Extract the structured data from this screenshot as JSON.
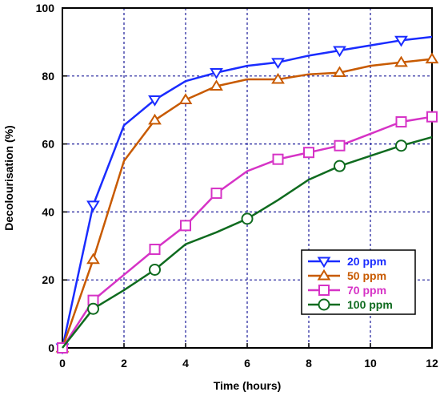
{
  "chart_data": {
    "type": "line",
    "title": "",
    "xlabel": "Time (hours)",
    "ylabel": "Decolourisation (%)",
    "xlim": [
      0,
      12
    ],
    "ylim": [
      0,
      100
    ],
    "xticks": [
      0,
      2,
      4,
      6,
      8,
      10,
      12
    ],
    "yticks": [
      0,
      20,
      40,
      60,
      80,
      100
    ],
    "grid": true,
    "legend_position": "bottom-right",
    "series": [
      {
        "name": "20 ppm",
        "color": "#1a2cff",
        "marker": "triangle-down",
        "x": [
          0,
          1,
          2,
          3,
          4,
          5,
          6,
          7,
          8,
          9,
          10,
          11,
          12
        ],
        "y": [
          0,
          42,
          65.5,
          73,
          78.5,
          81,
          83,
          84,
          86,
          87.5,
          89,
          90.5,
          91.5
        ],
        "marker_x": [
          0,
          1,
          3,
          5,
          7,
          9,
          11
        ],
        "marker_y": [
          0,
          42,
          73,
          81,
          84,
          87.5,
          90.5
        ]
      },
      {
        "name": "50 ppm",
        "color": "#c85a00",
        "marker": "triangle-up",
        "x": [
          0,
          1,
          2,
          3,
          4,
          5,
          6,
          7,
          8,
          9,
          10,
          11,
          12
        ],
        "y": [
          0,
          26,
          55,
          67,
          73,
          77,
          79,
          79,
          80.5,
          81,
          83,
          84,
          85
        ],
        "marker_x": [
          0,
          1,
          3,
          4,
          5,
          7,
          9,
          11,
          12
        ],
        "marker_y": [
          0,
          26,
          67,
          73,
          77,
          79,
          81,
          84,
          85
        ]
      },
      {
        "name": "70 ppm",
        "color": "#d633c6",
        "marker": "square",
        "x": [
          0,
          1,
          2,
          3,
          4,
          5,
          6,
          7,
          8,
          9,
          10,
          11,
          12
        ],
        "y": [
          0,
          14,
          21.5,
          29,
          36,
          45.5,
          52,
          55.5,
          57.5,
          59.5,
          63,
          66.5,
          68
        ],
        "marker_x": [
          0,
          1,
          3,
          4,
          5,
          7,
          8,
          9,
          11,
          12
        ],
        "marker_y": [
          0,
          14,
          29,
          36,
          45.5,
          55.5,
          57.5,
          59.5,
          66.5,
          68
        ]
      },
      {
        "name": "100 ppm",
        "color": "#0f6b1f",
        "marker": "circle",
        "x": [
          0,
          1,
          2,
          3,
          4,
          5,
          6,
          7,
          8,
          9,
          10,
          11,
          12
        ],
        "y": [
          0,
          11.5,
          17,
          23,
          30.5,
          34,
          38,
          43.5,
          49.5,
          53.5,
          56.5,
          59.5,
          62
        ],
        "marker_x": [
          1,
          3,
          6,
          9,
          11
        ],
        "marker_y": [
          11.5,
          23,
          38,
          53.5,
          59.5
        ]
      }
    ]
  }
}
